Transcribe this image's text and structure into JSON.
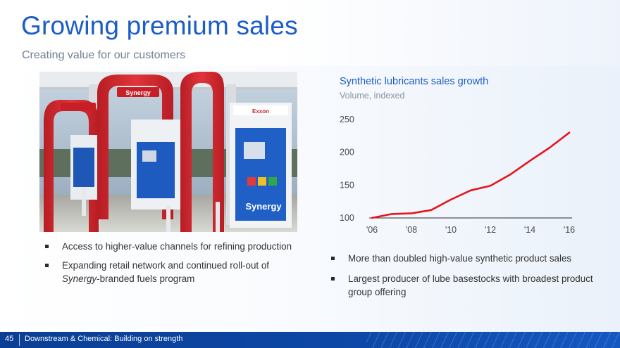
{
  "slide": {
    "title": "Growing premium sales",
    "subtitle": "Creating value for our customers",
    "photo_icon": "gas-station-photo",
    "photo_brand_text": "Synergy",
    "photo_pump_brand": "Exxon"
  },
  "left_bullets": [
    {
      "text": "Access to higher-value channels for refining production"
    },
    {
      "pre": "Expanding retail network and continued roll-out of ",
      "em": "Synergy",
      "post": "-branded fuels program"
    }
  ],
  "right_bullets": [
    {
      "text": "More than doubled high-value synthetic product sales"
    },
    {
      "text": "Largest producer of lube basestocks with broadest product group offering"
    }
  ],
  "chart_data": {
    "type": "line",
    "title": "Synthetic lubricants sales growth",
    "subtitle": "Volume, indexed",
    "xlabel": "",
    "ylabel": "",
    "x": [
      2006,
      2007,
      2008,
      2009,
      2010,
      2011,
      2012,
      2013,
      2014,
      2015,
      2016
    ],
    "x_tick_labels": [
      "'06",
      "'08",
      "'10",
      "'12",
      "'14",
      "'16"
    ],
    "x_tick_values": [
      2006,
      2008,
      2010,
      2012,
      2014,
      2016
    ],
    "y_ticks": [
      100,
      150,
      200,
      250
    ],
    "xlim": [
      2006,
      2016
    ],
    "ylim": [
      100,
      250
    ],
    "grid": false,
    "series": [
      {
        "name": "",
        "color": "#e4161b",
        "values": [
          100,
          106,
          107,
          112,
          128,
          142,
          149,
          166,
          187,
          207,
          230
        ]
      }
    ]
  },
  "footer": {
    "page_number": "45",
    "label": "Downstream & Chemical:  Building on strength"
  }
}
